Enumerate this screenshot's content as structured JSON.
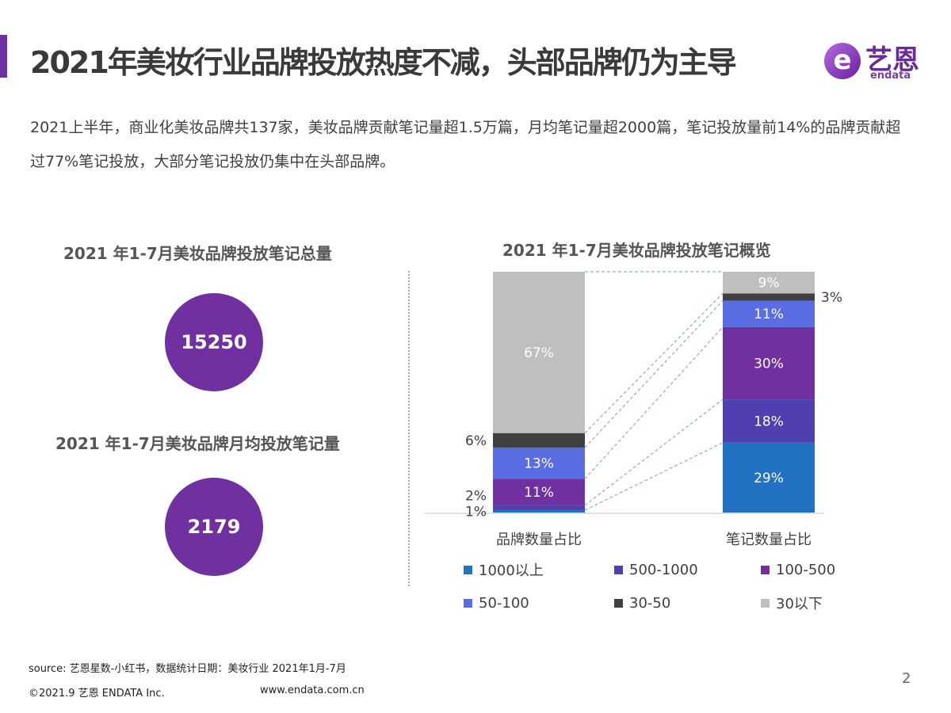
{
  "header": {
    "title": "2021年美妆行业品牌投放热度不减，头部品牌仍为主导",
    "logo": {
      "cn": "艺恩",
      "en": "endata",
      "mark": "e"
    }
  },
  "description": "2021上半年，商业化美妆品牌共137家，美妆品牌贡献笔记量超1.5万篇，月均笔记量超2000篇，笔记投放量前14%的品牌贡献超过77%笔记投放，大部分笔记投放仍集中在头部品牌。",
  "left_panel": {
    "total_title": "2021 年1-7月美妆品牌投放笔记总量",
    "total_value": "15250",
    "monthly_title": "2021 年1-7月美妆品牌月均投放笔记量",
    "monthly_value": "2179"
  },
  "colors": {
    "accent": "#7030a0"
  },
  "chart_data": {
    "type": "bar",
    "stacked": true,
    "title": "2021 年1-7月美妆品牌投放笔记概览",
    "categories": [
      "品牌数量占比",
      "笔记数量占比"
    ],
    "series": [
      {
        "name": "1000以上",
        "color": "#2272c3",
        "values": [
          1,
          29
        ],
        "labels": [
          "1%",
          "29%"
        ]
      },
      {
        "name": "500-1000",
        "color": "#4f3fb0",
        "values": [
          2,
          18
        ],
        "labels": [
          "2%",
          "18%"
        ]
      },
      {
        "name": "100-500",
        "color": "#7030a0",
        "values": [
          11,
          30
        ],
        "labels": [
          "11%",
          "30%"
        ]
      },
      {
        "name": "50-100",
        "color": "#5a6de3",
        "values": [
          13,
          11
        ],
        "labels": [
          "13%",
          "11%"
        ]
      },
      {
        "name": "30-50",
        "color": "#404040",
        "values": [
          6,
          3
        ],
        "labels": [
          "6%",
          "3%"
        ]
      },
      {
        "name": "30以下",
        "color": "#bfbfbf",
        "values": [
          67,
          9
        ],
        "labels": [
          "67%",
          "9%"
        ]
      }
    ],
    "ylim": [
      0,
      100
    ],
    "legend": "bottom",
    "grid": false
  },
  "footer": {
    "source": "source: 艺恩星数-小红书，数据统计日期：美妆行业 2021年1月-7月",
    "copyright": "©2021.9 艺恩 ENDATA Inc.",
    "website": "www.endata.com.cn",
    "page": "2"
  }
}
